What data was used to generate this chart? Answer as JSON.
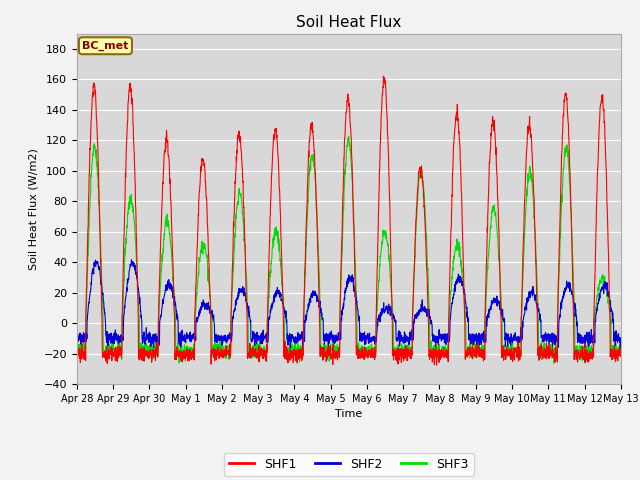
{
  "title": "Soil Heat Flux",
  "ylabel": "Soil Heat Flux (W/m2)",
  "xlabel": "Time",
  "annotation": "BC_met",
  "ylim": [
    -40,
    190
  ],
  "yticks": [
    -40,
    -20,
    0,
    20,
    40,
    60,
    80,
    100,
    120,
    140,
    160,
    180
  ],
  "legend_labels": [
    "SHF1",
    "SHF2",
    "SHF3"
  ],
  "line_colors": [
    "#ff0000",
    "#0000dd",
    "#00dd00"
  ],
  "fig_bg_color": "#f2f2f2",
  "plot_bg_color": "#d8d8d8",
  "grid_color": "#ffffff",
  "num_days": 15,
  "points_per_day": 144,
  "shf1_peaks": [
    155,
    155,
    120,
    108,
    125,
    127,
    130,
    148,
    160,
    102,
    138,
    133,
    130,
    150,
    148
  ],
  "shf2_peaks": [
    40,
    40,
    26,
    12,
    22,
    20,
    20,
    30,
    10,
    10,
    30,
    15,
    20,
    25,
    25
  ],
  "shf3_peaks": [
    115,
    82,
    67,
    52,
    85,
    60,
    110,
    120,
    60,
    100,
    52,
    75,
    100,
    115,
    30
  ],
  "xtick_labels": [
    "Apr 28",
    "Apr 29",
    "Apr 30",
    "May 1",
    "May 2",
    "May 3",
    "May 4",
    "May 5",
    "May 6",
    "May 7",
    "May 8",
    "May 9",
    "May 10",
    "May 11",
    "May 12",
    "May 13"
  ]
}
